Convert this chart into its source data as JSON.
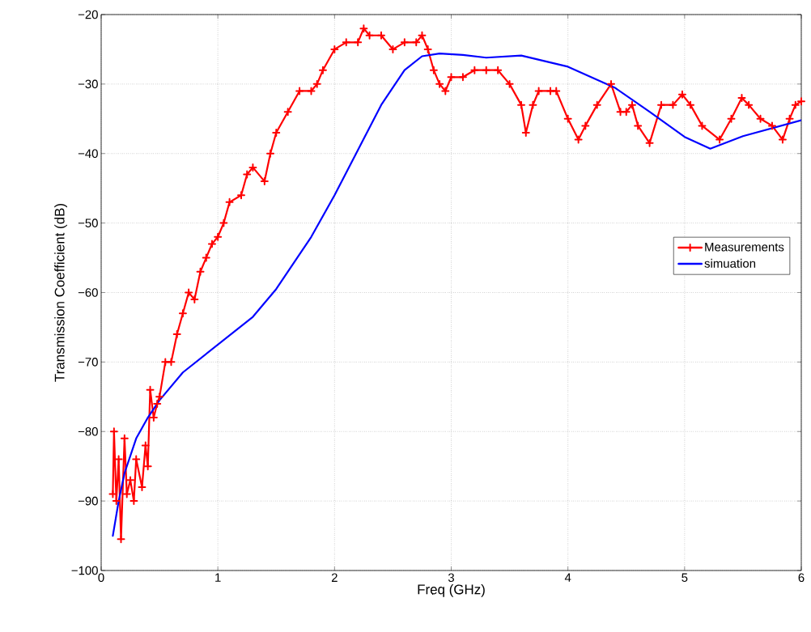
{
  "chart_data": {
    "type": "line",
    "xlabel": "Freq (GHz)",
    "ylabel": "Transmission Coefficient (dB)",
    "xlim": [
      0,
      6
    ],
    "ylim": [
      -100,
      -20
    ],
    "xticks": [
      0,
      1,
      2,
      3,
      4,
      5,
      6
    ],
    "yticks": [
      {
        "value": -100,
        "label": "−100"
      },
      {
        "value": -90,
        "label": "−90"
      },
      {
        "value": -80,
        "label": "−80"
      },
      {
        "value": -70,
        "label": "−70"
      },
      {
        "value": -60,
        "label": "−60"
      },
      {
        "value": -50,
        "label": "−50"
      },
      {
        "value": -40,
        "label": "−40"
      },
      {
        "value": -30,
        "label": "−30"
      },
      {
        "value": -20,
        "label": "−20"
      }
    ],
    "grid": true,
    "legend": "right",
    "line_style": "solid",
    "series": [
      {
        "name": "Measurements",
        "color": "#ff0000",
        "marker": "cross",
        "x": [
          0.1,
          0.11,
          0.13,
          0.15,
          0.17,
          0.2,
          0.22,
          0.25,
          0.28,
          0.3,
          0.35,
          0.38,
          0.4,
          0.42,
          0.45,
          0.48,
          0.5,
          0.55,
          0.6,
          0.65,
          0.7,
          0.75,
          0.8,
          0.85,
          0.9,
          0.95,
          1.0,
          1.05,
          1.1,
          1.2,
          1.25,
          1.3,
          1.4,
          1.45,
          1.5,
          1.6,
          1.7,
          1.8,
          1.85,
          1.9,
          2.0,
          2.1,
          2.2,
          2.25,
          2.3,
          2.4,
          2.5,
          2.6,
          2.7,
          2.75,
          2.8,
          2.85,
          2.9,
          2.95,
          3.0,
          3.1,
          3.2,
          3.3,
          3.4,
          3.5,
          3.6,
          3.64,
          3.7,
          3.75,
          3.85,
          3.9,
          4.0,
          4.09,
          4.15,
          4.25,
          4.37,
          4.45,
          4.5,
          4.55,
          4.6,
          4.7,
          4.8,
          4.9,
          4.98,
          5.05,
          5.15,
          5.3,
          5.4,
          5.49,
          5.55,
          5.65,
          5.75,
          5.84,
          5.9,
          5.95,
          6.0
        ],
        "values": [
          -89,
          -80,
          -90,
          -84,
          -95.5,
          -81,
          -89,
          -87,
          -90,
          -84,
          -88,
          -82,
          -85,
          -74,
          -78,
          -76,
          -75,
          -70,
          -70,
          -66,
          -63,
          -60,
          -61,
          -57,
          -55,
          -53,
          -52,
          -50,
          -47,
          -46,
          -43,
          -42,
          -44,
          -40,
          -37,
          -34,
          -31,
          -31,
          -30,
          -28,
          -25,
          -24,
          -24,
          -22,
          -23,
          -23,
          -25,
          -24,
          -24,
          -23,
          -25,
          -28,
          -30,
          -31,
          -29,
          -29,
          -28,
          -28,
          -28,
          -30,
          -33,
          -37,
          -33,
          -31,
          -31,
          -31,
          -35,
          -38,
          -36,
          -33,
          -30,
          -34,
          -34,
          -33,
          -36,
          -38.5,
          -33,
          -33,
          -31.5,
          -33,
          -36,
          -38,
          -35,
          -32,
          -33,
          -35,
          -36,
          -38,
          -35,
          -33,
          -32.5
        ]
      },
      {
        "name": "simuation",
        "color": "#0000ff",
        "marker": "none",
        "x": [
          0.1,
          0.15,
          0.2,
          0.3,
          0.4,
          0.5,
          0.7,
          1.0,
          1.3,
          1.5,
          1.8,
          2.0,
          2.2,
          2.4,
          2.6,
          2.75,
          2.9,
          3.1,
          3.3,
          3.6,
          4.0,
          4.4,
          4.7,
          5.0,
          5.22,
          5.5,
          6.0
        ],
        "values": [
          -95,
          -90,
          -86,
          -81,
          -78,
          -75.5,
          -71.5,
          -67.5,
          -63.5,
          -59.5,
          -52,
          -46,
          -39.5,
          -33,
          -28,
          -26,
          -25.6,
          -25.8,
          -26.2,
          -25.9,
          -27.5,
          -30.5,
          -34,
          -37.6,
          -39.3,
          -37.5,
          -35.2
        ]
      }
    ]
  }
}
